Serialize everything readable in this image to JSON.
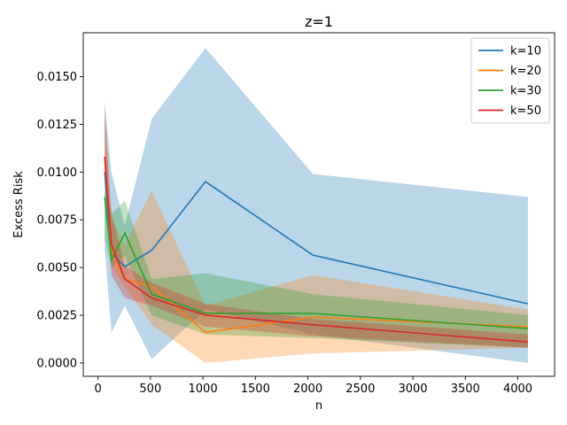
{
  "chart_data": {
    "type": "line",
    "title": "z=1",
    "xlabel": "n",
    "ylabel": "Excess Risk",
    "xlim": [
      -140,
      4350
    ],
    "ylim": [
      -0.0007,
      0.0173
    ],
    "xticks": [
      0,
      500,
      1000,
      1500,
      2000,
      2500,
      3000,
      3500,
      4000
    ],
    "yticks": [
      0.0,
      0.0025,
      0.005,
      0.0075,
      0.01,
      0.0125,
      0.015
    ],
    "ytick_labels": [
      "0.0000",
      "0.0025",
      "0.0050",
      "0.0075",
      "0.0100",
      "0.0125",
      "0.0150"
    ],
    "grid": false,
    "legend_position": "top-right",
    "x": [
      64,
      128,
      256,
      512,
      1024,
      2048,
      4096
    ],
    "series": [
      {
        "name": "k=10",
        "color": "#1f77b4",
        "values": [
          0.01,
          0.00575,
          0.00505,
          0.0059,
          0.0095,
          0.00565,
          0.0031
        ],
        "lower": [
          0.006,
          0.0016,
          0.003,
          0.0002,
          0.0028,
          0.0015,
          0.0
        ],
        "upper": [
          0.0137,
          0.01,
          0.0072,
          0.0128,
          0.0165,
          0.0099,
          0.0087
        ]
      },
      {
        "name": "k=20",
        "color": "#ff7f0e",
        "values": [
          0.0108,
          0.0058,
          0.0044,
          0.004,
          0.0016,
          0.0024,
          0.0019
        ],
        "lower": [
          0.0095,
          0.005,
          0.004,
          0.002,
          0.0,
          0.0005,
          0.0008
        ],
        "upper": [
          0.0135,
          0.0076,
          0.0062,
          0.009,
          0.003,
          0.0046,
          0.0028
        ]
      },
      {
        "name": "k=30",
        "color": "#2ca02c",
        "values": [
          0.0087,
          0.0054,
          0.0068,
          0.0036,
          0.0026,
          0.0026,
          0.0018
        ],
        "lower": [
          0.0065,
          0.005,
          0.0056,
          0.0025,
          0.0015,
          0.0013,
          0.0008
        ],
        "upper": [
          0.009,
          0.0078,
          0.0085,
          0.0044,
          0.0047,
          0.0036,
          0.0025
        ]
      },
      {
        "name": "k=50",
        "color": "#d62728",
        "values": [
          0.0108,
          0.0062,
          0.0044,
          0.0034,
          0.0025,
          0.002,
          0.0011
        ],
        "lower": [
          0.0096,
          0.0046,
          0.0034,
          0.003,
          0.0019,
          0.0014,
          0.0008
        ],
        "upper": [
          0.0133,
          0.0079,
          0.0051,
          0.0042,
          0.0031,
          0.0023,
          0.0015
        ]
      }
    ]
  }
}
